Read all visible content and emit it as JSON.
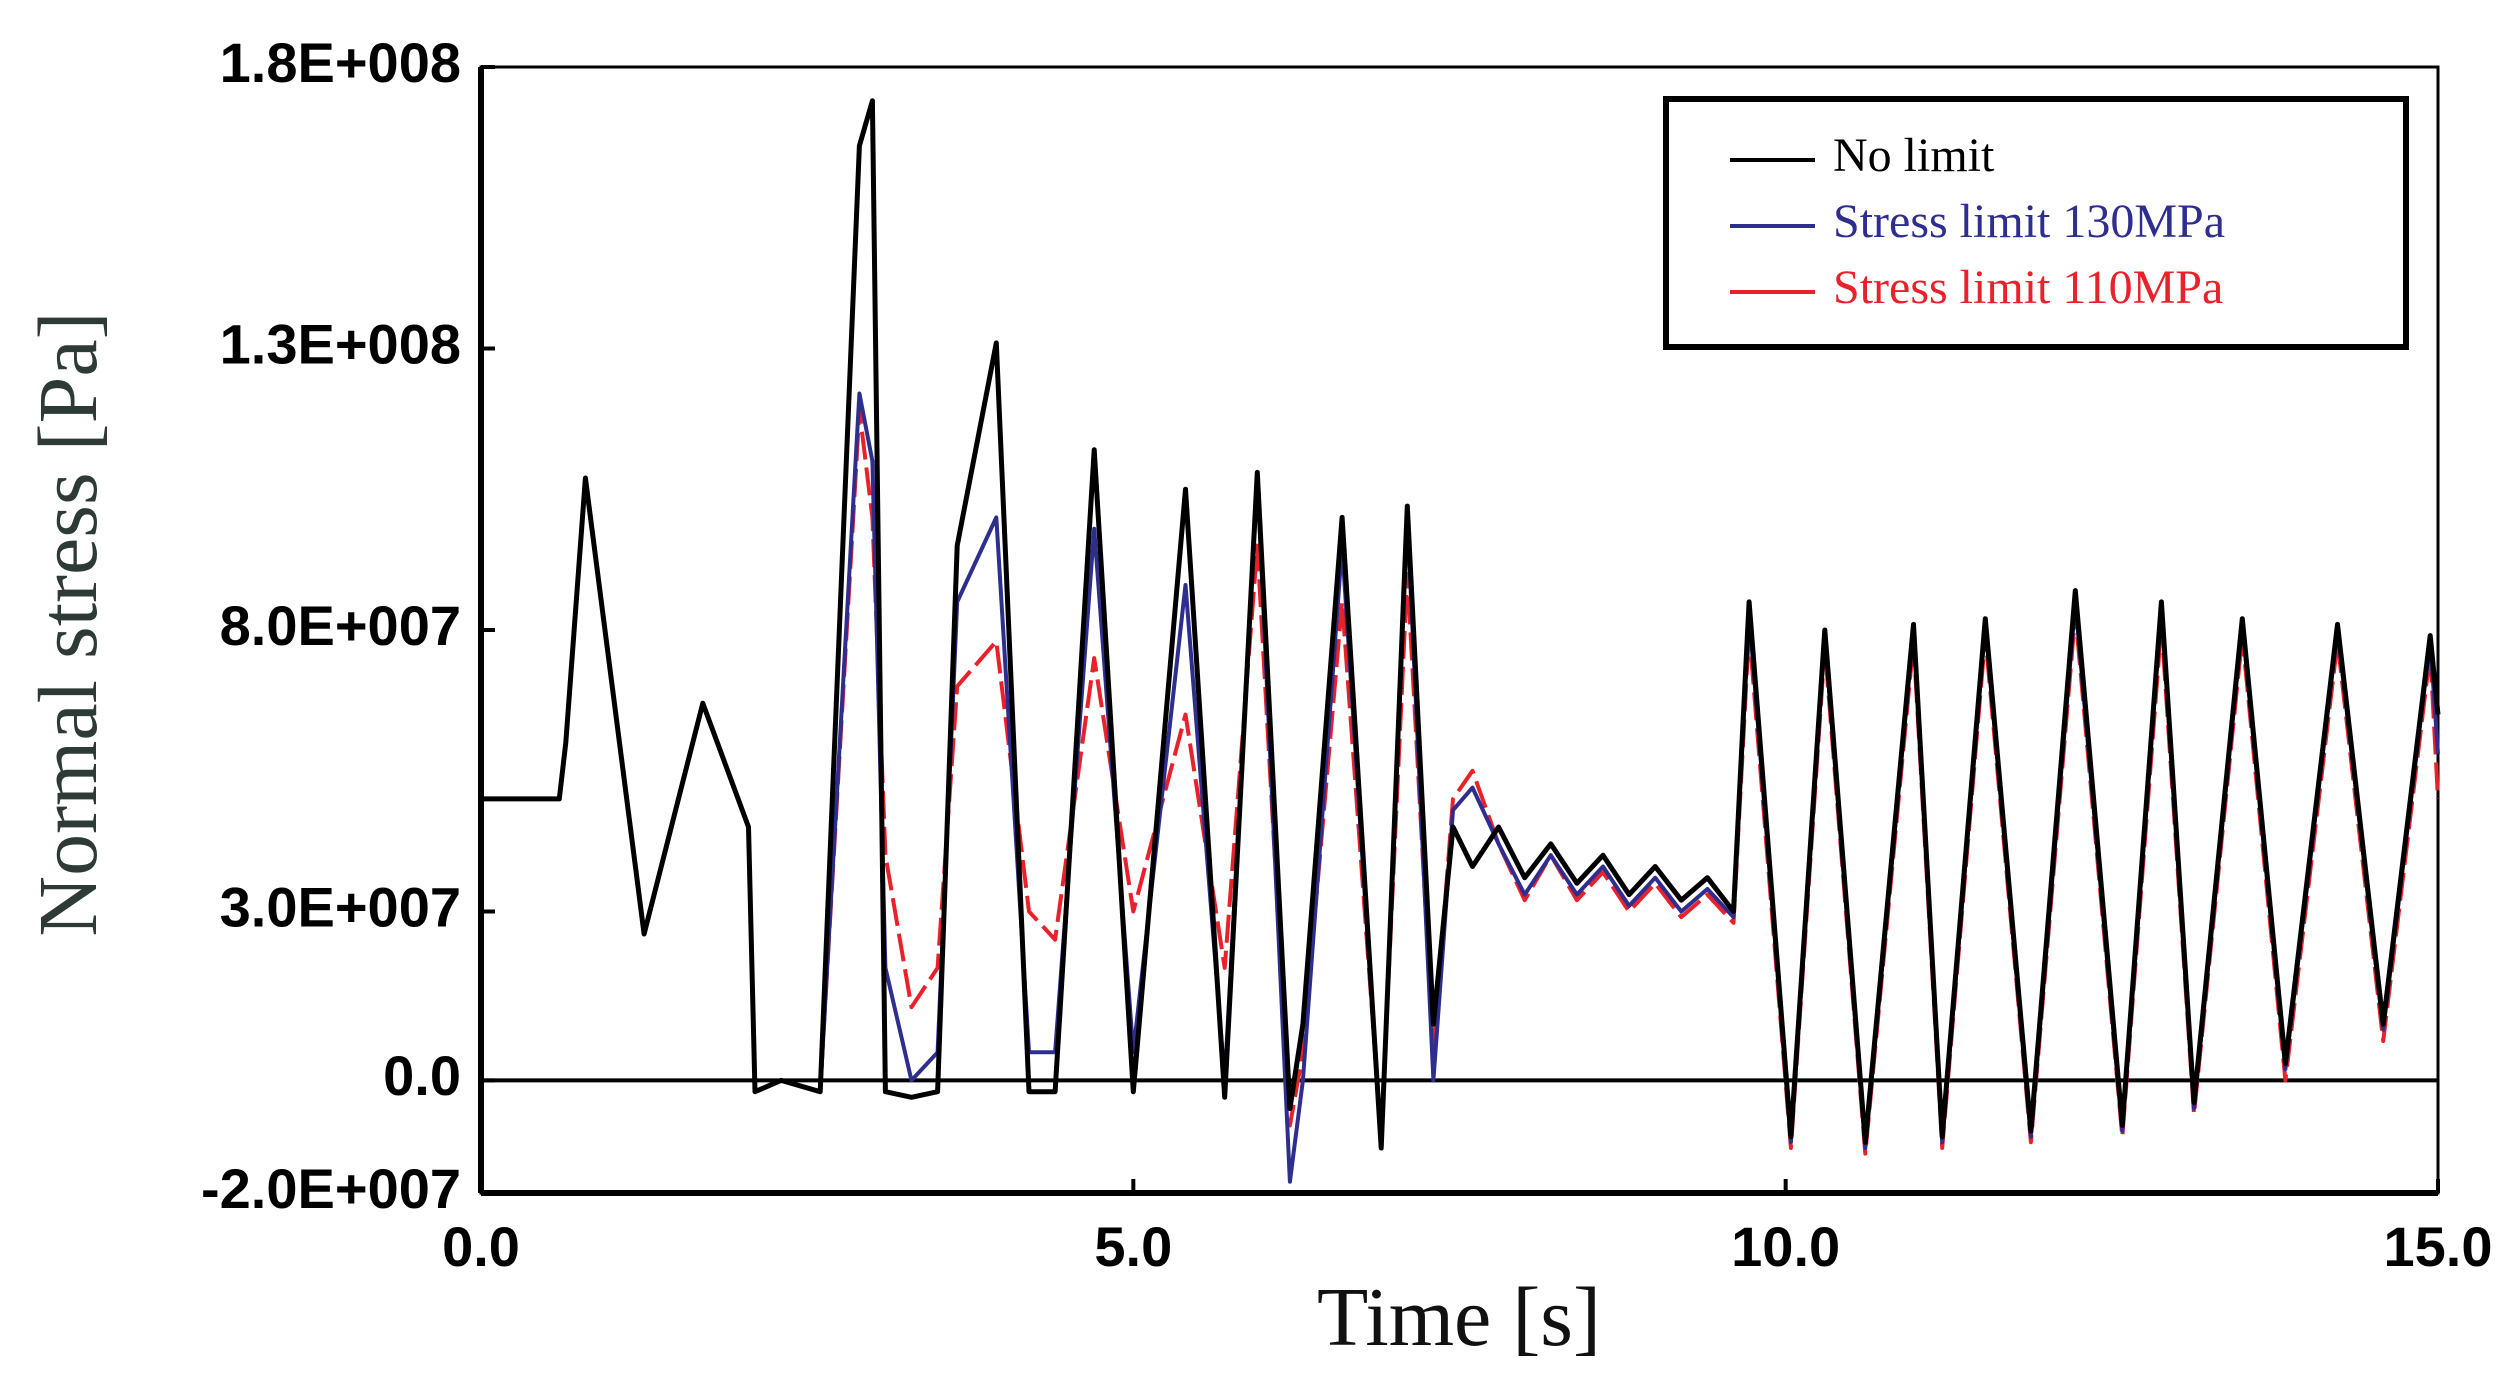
{
  "chart_data": {
    "type": "line",
    "xlabel": "Time [s]",
    "ylabel": "Normal stress [Pa]",
    "x": [
      0,
      0.6,
      0.65,
      0.8,
      1.25,
      1.7,
      2.05,
      2.1,
      2.3,
      2.6,
      2.9,
      3.0,
      3.1,
      3.3,
      3.5,
      3.65,
      3.95,
      4.2,
      4.4,
      4.7,
      5.0,
      5.4,
      5.7,
      5.95,
      6.2,
      6.3,
      6.6,
      6.9,
      7.1,
      7.3,
      7.45,
      7.6,
      7.8,
      8.0,
      8.2,
      8.4,
      8.6,
      8.8,
      9.0,
      9.2,
      9.4,
      9.6,
      9.72,
      10.04,
      10.3,
      10.61,
      10.98,
      11.2,
      11.53,
      11.88,
      12.22,
      12.58,
      12.88,
      13.13,
      13.5,
      13.83,
      14.23,
      14.58,
      14.94,
      15
    ],
    "series": [
      {
        "name": "No limit",
        "color": "#000000",
        "values": [
          50000000.0,
          50000000.0,
          60000000.0,
          107000000.0,
          26000000.0,
          67000000.0,
          45000000.0,
          -2000000.0,
          0,
          -2000000.0,
          166000000.0,
          174000000.0,
          -2000000.0,
          -3000000.0,
          -2000000.0,
          95000000.0,
          131000000.0,
          -2000000.0,
          -2000000.0,
          112000000.0,
          -2000000.0,
          105000000.0,
          -3000000.0,
          108000000.0,
          -5000000.0,
          10000000.0,
          100000000.0,
          -12000000.0,
          102000000.0,
          10000000.0,
          45000000.0,
          38000000.0,
          45000000.0,
          36000000.0,
          42000000.0,
          35000000.0,
          40000000.0,
          33000000.0,
          38000000.0,
          32000000.0,
          36000000.0,
          30000000.0,
          85000000.0,
          -10000000.0,
          80000000.0,
          -11000000.0,
          81000000.0,
          -10000000.0,
          82000000.0,
          -9000000.0,
          87000000.0,
          -8000000.0,
          85000000.0,
          -4000000.0,
          82000000.0,
          3000000.0,
          81000000.0,
          10000000.0,
          79000000.0,
          65000000.0
        ]
      },
      {
        "name": "Stress limit 130MPa",
        "color": "#2e2e8f",
        "values": [
          50000000.0,
          50000000.0,
          60000000.0,
          107000000.0,
          26000000.0,
          67000000.0,
          45000000.0,
          -2000000.0,
          0,
          -2000000.0,
          122000000.0,
          110000000.0,
          20000000.0,
          0,
          5000000.0,
          85000000.0,
          100000000.0,
          5000000.0,
          5000000.0,
          98000000.0,
          5000000.0,
          88000000.0,
          0,
          107000000.0,
          -18000000.0,
          0,
          95000000.0,
          -12000000.0,
          100000000.0,
          0,
          48000000.0,
          52000000.0,
          42000000.0,
          33000000.0,
          40000000.0,
          33000000.0,
          38000000.0,
          31000000.0,
          36000000.0,
          30000000.0,
          34000000.0,
          29000000.0,
          83000000.0,
          -11000000.0,
          79000000.0,
          -12000000.0,
          80000000.0,
          -11000000.0,
          81000000.0,
          -10000000.0,
          85000000.0,
          -9000000.0,
          84000000.0,
          -5000000.0,
          81000000.0,
          2000000.0,
          80000000.0,
          9000000.0,
          78000000.0,
          58000000.0
        ]
      },
      {
        "name": "Stress limit 110MPa",
        "color": "#e8212b",
        "values": [
          50000000.0,
          50000000.0,
          60000000.0,
          107000000.0,
          26000000.0,
          67000000.0,
          45000000.0,
          -2000000.0,
          0,
          -2000000.0,
          119000000.0,
          100000000.0,
          40000000.0,
          13000000.0,
          20000000.0,
          70000000.0,
          78000000.0,
          30000000.0,
          25000000.0,
          75000000.0,
          30000000.0,
          65000000.0,
          20000000.0,
          95000000.0,
          -8000000.0,
          5000000.0,
          85000000.0,
          -10000000.0,
          90000000.0,
          5000000.0,
          50000000.0,
          55000000.0,
          42000000.0,
          32000000.0,
          40000000.0,
          32000000.0,
          37000000.0,
          30000000.0,
          35000000.0,
          29000000.0,
          33000000.0,
          28000000.0,
          80000000.0,
          -12000000.0,
          77000000.0,
          -13000000.0,
          78000000.0,
          -12000000.0,
          79000000.0,
          -11000000.0,
          83000000.0,
          -10000000.0,
          81000000.0,
          -6000000.0,
          79000000.0,
          0,
          78000000.0,
          7000000.0,
          76000000.0,
          50000000.0
        ]
      }
    ],
    "xlim": [
      0,
      15
    ],
    "ylim": [
      -20000000.0,
      180000000.0
    ],
    "xticks": [
      {
        "value": 0,
        "label": "0.0"
      },
      {
        "value": 5,
        "label": "5.0"
      },
      {
        "value": 10,
        "label": "10.0"
      },
      {
        "value": 15,
        "label": "15.0"
      }
    ],
    "yticks": [
      {
        "value": -20000000.0,
        "label": "-2.0E+007"
      },
      {
        "value": 0,
        "label": "0.0"
      },
      {
        "value": 30000000.0,
        "label": "3.0E+007"
      },
      {
        "value": 80000000.0,
        "label": "8.0E+007"
      },
      {
        "value": 130000000.0,
        "label": "1.3E+008"
      },
      {
        "value": 180000000.0,
        "label": "1.8E+008"
      }
    ],
    "legend": "upper right"
  }
}
